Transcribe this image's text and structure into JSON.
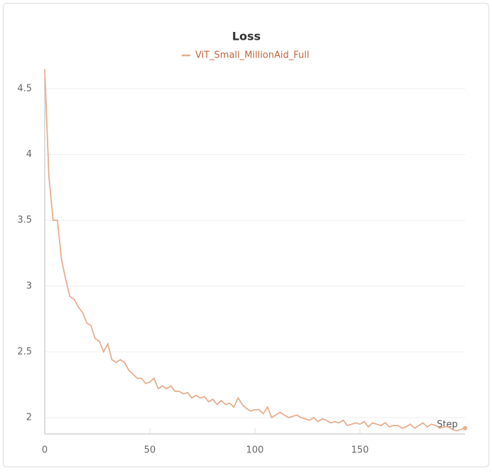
{
  "chart_data": {
    "type": "line",
    "title": "Loss",
    "x_label": "Step",
    "x": [
      0,
      2,
      4,
      6,
      8,
      10,
      12,
      14,
      16,
      18,
      20,
      22,
      24,
      26,
      28,
      30,
      32,
      34,
      36,
      38,
      40,
      42,
      44,
      46,
      48,
      50,
      52,
      54,
      56,
      58,
      60,
      62,
      64,
      66,
      68,
      70,
      72,
      74,
      76,
      78,
      80,
      82,
      84,
      86,
      88,
      90,
      92,
      94,
      96,
      98,
      100,
      102,
      104,
      106,
      108,
      110,
      112,
      114,
      116,
      118,
      120,
      122,
      124,
      126,
      128,
      130,
      132,
      134,
      136,
      138,
      140,
      142,
      144,
      146,
      148,
      150,
      152,
      154,
      156,
      158,
      160,
      162,
      164,
      166,
      168,
      170,
      172,
      174,
      176,
      178,
      180,
      182,
      184,
      186,
      188,
      190,
      192,
      194,
      196,
      198,
      200
    ],
    "series": [
      {
        "name": "ViT_Small_MillionAid_Full",
        "color": "#e8ad8c",
        "values": [
          4.65,
          3.83,
          3.5,
          3.5,
          3.2,
          3.05,
          2.92,
          2.9,
          2.84,
          2.8,
          2.72,
          2.7,
          2.6,
          2.58,
          2.5,
          2.56,
          2.44,
          2.42,
          2.44,
          2.42,
          2.36,
          2.33,
          2.3,
          2.3,
          2.26,
          2.27,
          2.3,
          2.22,
          2.24,
          2.22,
          2.24,
          2.2,
          2.2,
          2.18,
          2.19,
          2.15,
          2.17,
          2.15,
          2.16,
          2.12,
          2.14,
          2.1,
          2.13,
          2.1,
          2.11,
          2.08,
          2.15,
          2.1,
          2.07,
          2.05,
          2.06,
          2.06,
          2.03,
          2.08,
          2.0,
          2.02,
          2.04,
          2.02,
          2.0,
          2.01,
          2.02,
          2.0,
          1.99,
          1.98,
          2.0,
          1.97,
          1.99,
          1.98,
          1.96,
          1.97,
          1.96,
          1.98,
          1.94,
          1.95,
          1.96,
          1.95,
          1.97,
          1.93,
          1.96,
          1.95,
          1.94,
          1.96,
          1.93,
          1.94,
          1.94,
          1.92,
          1.93,
          1.95,
          1.92,
          1.94,
          1.96,
          1.93,
          1.95,
          1.94,
          1.92,
          1.93,
          1.93,
          1.91,
          1.9,
          1.91,
          1.92
        ]
      }
    ],
    "xlim": [
      0,
      200
    ],
    "ylim": [
      1.876,
      4.7
    ],
    "xticks": [
      0,
      50,
      100,
      150
    ],
    "yticks": [
      2,
      2.5,
      3,
      3.5,
      4,
      4.5
    ],
    "grid": true
  }
}
